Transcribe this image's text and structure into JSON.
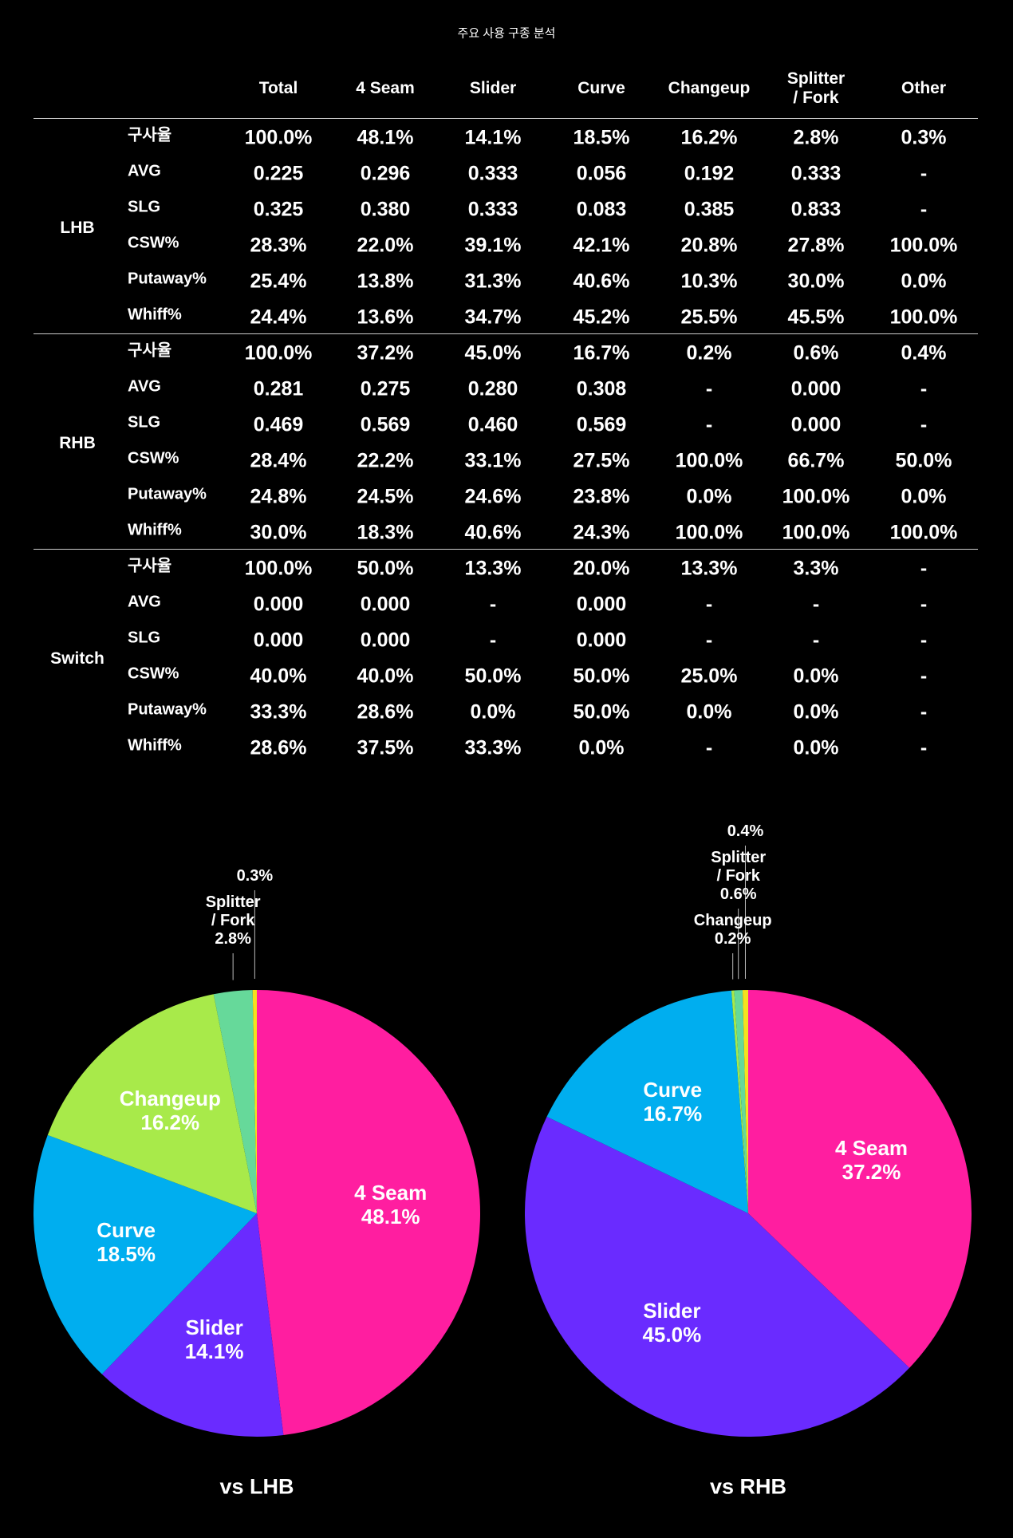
{
  "title": "주요 사용 구종 분석",
  "table": {
    "columns": [
      "Total",
      "4 Seam",
      "Slider",
      "Curve",
      "Changeup",
      "Splitter\n/ Fork",
      "Other"
    ],
    "groups": [
      {
        "name": "LHB",
        "rows": [
          {
            "label": "구사율",
            "cells": [
              "100.0%",
              "48.1%",
              "14.1%",
              "18.5%",
              "16.2%",
              "2.8%",
              "0.3%"
            ]
          },
          {
            "label": "AVG",
            "cells": [
              "0.225",
              "0.296",
              "0.333",
              "0.056",
              "0.192",
              "0.333",
              "-"
            ]
          },
          {
            "label": "SLG",
            "cells": [
              "0.325",
              "0.380",
              "0.333",
              "0.083",
              "0.385",
              "0.833",
              "-"
            ]
          },
          {
            "label": "CSW%",
            "cells": [
              "28.3%",
              "22.0%",
              "39.1%",
              "42.1%",
              "20.8%",
              "27.8%",
              "100.0%"
            ]
          },
          {
            "label": "Putaway%",
            "cells": [
              "25.4%",
              "13.8%",
              "31.3%",
              "40.6%",
              "10.3%",
              "30.0%",
              "0.0%"
            ]
          },
          {
            "label": "Whiff%",
            "cells": [
              "24.4%",
              "13.6%",
              "34.7%",
              "45.2%",
              "25.5%",
              "45.5%",
              "100.0%"
            ]
          }
        ]
      },
      {
        "name": "RHB",
        "rows": [
          {
            "label": "구사율",
            "cells": [
              "100.0%",
              "37.2%",
              "45.0%",
              "16.7%",
              "0.2%",
              "0.6%",
              "0.4%"
            ]
          },
          {
            "label": "AVG",
            "cells": [
              "0.281",
              "0.275",
              "0.280",
              "0.308",
              "-",
              "0.000",
              "-"
            ]
          },
          {
            "label": "SLG",
            "cells": [
              "0.469",
              "0.569",
              "0.460",
              "0.569",
              "-",
              "0.000",
              "-"
            ]
          },
          {
            "label": "CSW%",
            "cells": [
              "28.4%",
              "22.2%",
              "33.1%",
              "27.5%",
              "100.0%",
              "66.7%",
              "50.0%"
            ]
          },
          {
            "label": "Putaway%",
            "cells": [
              "24.8%",
              "24.5%",
              "24.6%",
              "23.8%",
              "0.0%",
              "100.0%",
              "0.0%"
            ]
          },
          {
            "label": "Whiff%",
            "cells": [
              "30.0%",
              "18.3%",
              "40.6%",
              "24.3%",
              "100.0%",
              "100.0%",
              "100.0%"
            ]
          }
        ]
      },
      {
        "name": "Switch",
        "rows": [
          {
            "label": "구사율",
            "cells": [
              "100.0%",
              "50.0%",
              "13.3%",
              "20.0%",
              "13.3%",
              "3.3%",
              "-"
            ]
          },
          {
            "label": "AVG",
            "cells": [
              "0.000",
              "0.000",
              "-",
              "0.000",
              "-",
              "-",
              "-"
            ]
          },
          {
            "label": "SLG",
            "cells": [
              "0.000",
              "0.000",
              "-",
              "0.000",
              "-",
              "-",
              "-"
            ]
          },
          {
            "label": "CSW%",
            "cells": [
              "40.0%",
              "40.0%",
              "50.0%",
              "50.0%",
              "25.0%",
              "0.0%",
              "-"
            ]
          },
          {
            "label": "Putaway%",
            "cells": [
              "33.3%",
              "28.6%",
              "0.0%",
              "50.0%",
              "0.0%",
              "0.0%",
              "-"
            ]
          },
          {
            "label": "Whiff%",
            "cells": [
              "28.6%",
              "37.5%",
              "33.3%",
              "0.0%",
              "-",
              "0.0%",
              "-"
            ]
          }
        ]
      }
    ]
  },
  "chart_data": [
    {
      "type": "pie",
      "title": "vs LHB",
      "categories": [
        "4 Seam",
        "Slider",
        "Curve",
        "Changeup",
        "Splitter\n/ Fork",
        null
      ],
      "values": [
        48.1,
        14.1,
        18.5,
        16.2,
        2.8,
        0.3
      ],
      "value_labels": [
        "48.1%",
        "14.1%",
        "18.5%",
        "16.2%",
        "2.8%",
        "0.3%"
      ],
      "colors": [
        "#ff1ea0",
        "#6a2bff",
        "#00aeef",
        "#a8ea4a",
        "#66d99a",
        "#f5e11e"
      ]
    },
    {
      "type": "pie",
      "title": "vs RHB",
      "categories": [
        "4 Seam",
        "Slider",
        "Curve",
        "Changeup",
        "Splitter\n/ Fork",
        null
      ],
      "values": [
        37.2,
        45.0,
        16.7,
        0.2,
        0.6,
        0.4
      ],
      "value_labels": [
        "37.2%",
        "45.0%",
        "16.7%",
        "0.2%",
        "0.6%",
        "0.4%"
      ],
      "colors": [
        "#ff1ea0",
        "#6a2bff",
        "#00aeef",
        "#a8ea4a",
        "#66d99a",
        "#f5e11e"
      ]
    }
  ]
}
